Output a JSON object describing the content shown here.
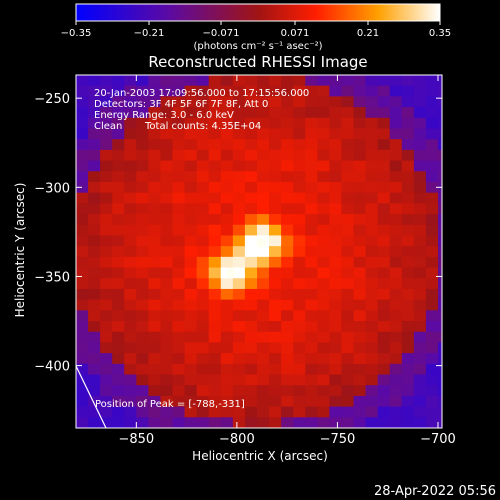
{
  "chart_data": {
    "type": "heatmap",
    "title": "Reconstructed RHESSI Image",
    "xlabel": "Heliocentric X (arcsec)",
    "ylabel": "Heliocentric Y (arcsec)",
    "xlim": [
      -880,
      -698
    ],
    "ylim": [
      -435,
      -237
    ],
    "x_ticks": [
      -850,
      -800,
      -750,
      -700
    ],
    "x_tick_labels": [
      "−850",
      "−800",
      "−750",
      "−700"
    ],
    "y_ticks": [
      -250,
      -300,
      -350,
      -400
    ],
    "y_tick_labels": [
      "−250",
      "−300",
      "−350",
      "−400"
    ],
    "colorbar": {
      "range": [
        -0.35,
        0.35
      ],
      "ticks": [
        -0.35,
        -0.21,
        -0.071,
        0.071,
        0.21,
        0.35
      ],
      "tick_labels": [
        "−0.35",
        "−0.21",
        "−0.071",
        "0.071",
        "0.21",
        "0.35"
      ],
      "unit_label": "(photons cm⁻² s⁻¹ asec⁻²)",
      "colors": [
        "#0000ff",
        "#5a0aa5",
        "#a01414",
        "#ff1e00",
        "#ffa000",
        "#ffffff"
      ]
    },
    "sources": [
      {
        "x": -788,
        "y": -331,
        "peak": 0.35
      },
      {
        "x": -803,
        "y": -348,
        "peak": 0.31
      }
    ],
    "annotations": {
      "line1": "20-Jan-2003 17:09:56.000 to 17:15:56.000",
      "line2": "Detectors: 3F 4F 5F 6F 7F 8F, Att 0",
      "line3": "Energy Range: 3.0 - 6.0 keV",
      "line4_a": "Clean",
      "line4_b": "Total counts: 4.35E+04",
      "peak": "Position of Peak = [-788,-331]"
    }
  },
  "footer": {
    "date": "28-Apr-2022 05:56"
  }
}
